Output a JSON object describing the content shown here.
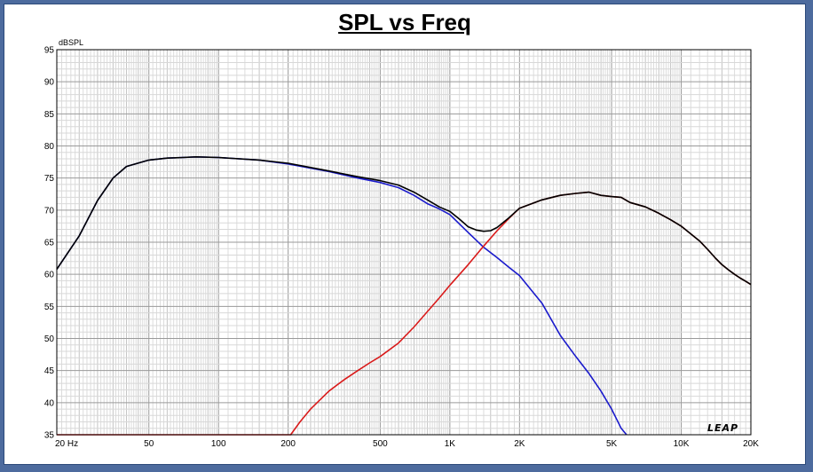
{
  "chart_data": {
    "type": "line",
    "title": "SPL vs Freq",
    "ylabel_unit": "dBSPL",
    "x_scale": "log",
    "xlim": [
      20,
      20000
    ],
    "ylim": [
      35,
      95
    ],
    "y_ticks": [
      35,
      40,
      45,
      50,
      55,
      60,
      65,
      70,
      75,
      80,
      85,
      90,
      95
    ],
    "x_ticks": [
      {
        "value": 20,
        "label": "20  Hz"
      },
      {
        "value": 50,
        "label": "50"
      },
      {
        "value": 100,
        "label": "100"
      },
      {
        "value": 200,
        "label": "200"
      },
      {
        "value": 500,
        "label": "500"
      },
      {
        "value": 1000,
        "label": "1K"
      },
      {
        "value": 2000,
        "label": "2K"
      },
      {
        "value": 5000,
        "label": "5K"
      },
      {
        "value": 10000,
        "label": "10K"
      },
      {
        "value": 20000,
        "label": "20K"
      }
    ],
    "grid": true,
    "logo_text": "LEAP",
    "series": [
      {
        "color": "#1a1acc",
        "points": [
          [
            20,
            60.8
          ],
          [
            25,
            66
          ],
          [
            30,
            71.5
          ],
          [
            35,
            75
          ],
          [
            40,
            76.8
          ],
          [
            50,
            77.8
          ],
          [
            60,
            78.1
          ],
          [
            70,
            78.2
          ],
          [
            80,
            78.3
          ],
          [
            100,
            78.2
          ],
          [
            150,
            77.8
          ],
          [
            200,
            77.2
          ],
          [
            300,
            76
          ],
          [
            400,
            75
          ],
          [
            500,
            74.3
          ],
          [
            600,
            73.5
          ],
          [
            700,
            72.3
          ],
          [
            800,
            71
          ],
          [
            900,
            70.2
          ],
          [
            1000,
            69.3
          ],
          [
            1200,
            66.5
          ],
          [
            1400,
            64.2
          ],
          [
            1600,
            62.6
          ],
          [
            1800,
            61.1
          ],
          [
            2000,
            59.8
          ],
          [
            2500,
            55.5
          ],
          [
            3000,
            50.5
          ],
          [
            3500,
            47.2
          ],
          [
            4000,
            44.5
          ],
          [
            4500,
            41.8
          ],
          [
            5000,
            39
          ],
          [
            5500,
            36
          ],
          [
            5800,
            35
          ]
        ]
      },
      {
        "color": "#d91a1a",
        "points": [
          [
            20,
            35
          ],
          [
            205,
            35
          ],
          [
            225,
            37
          ],
          [
            250,
            39
          ],
          [
            300,
            41.8
          ],
          [
            350,
            43.6
          ],
          [
            400,
            45
          ],
          [
            450,
            46.2
          ],
          [
            500,
            47.2
          ],
          [
            600,
            49.3
          ],
          [
            700,
            51.8
          ],
          [
            800,
            54.2
          ],
          [
            900,
            56.3
          ],
          [
            1000,
            58.3
          ],
          [
            1200,
            61.5
          ],
          [
            1400,
            64.4
          ],
          [
            1600,
            66.8
          ],
          [
            1800,
            68.7
          ],
          [
            2000,
            70.3
          ],
          [
            2500,
            71.6
          ],
          [
            3000,
            72.3
          ],
          [
            3500,
            72.6
          ],
          [
            4000,
            72.8
          ],
          [
            4500,
            72.3
          ],
          [
            5000,
            72.1
          ],
          [
            5500,
            72
          ],
          [
            6000,
            71.2
          ],
          [
            7000,
            70.5
          ],
          [
            8000,
            69.5
          ],
          [
            9000,
            68.5
          ],
          [
            10000,
            67.5
          ],
          [
            11000,
            66.3
          ],
          [
            12000,
            65.2
          ],
          [
            13000,
            63.9
          ],
          [
            14000,
            62.6
          ],
          [
            15000,
            61.5
          ],
          [
            16000,
            60.7
          ],
          [
            17000,
            60
          ],
          [
            18000,
            59.4
          ],
          [
            19000,
            58.9
          ],
          [
            20000,
            58.4
          ]
        ]
      },
      {
        "color": "#000000",
        "points": [
          [
            20,
            60.8
          ],
          [
            25,
            66
          ],
          [
            30,
            71.5
          ],
          [
            35,
            75
          ],
          [
            40,
            76.8
          ],
          [
            50,
            77.8
          ],
          [
            60,
            78.1
          ],
          [
            70,
            78.2
          ],
          [
            80,
            78.3
          ],
          [
            100,
            78.2
          ],
          [
            150,
            77.8
          ],
          [
            200,
            77.3
          ],
          [
            300,
            76.1
          ],
          [
            400,
            75.2
          ],
          [
            500,
            74.6
          ],
          [
            600,
            73.9
          ],
          [
            700,
            72.8
          ],
          [
            800,
            71.6
          ],
          [
            900,
            70.5
          ],
          [
            1000,
            69.8
          ],
          [
            1100,
            68.6
          ],
          [
            1200,
            67.4
          ],
          [
            1300,
            66.9
          ],
          [
            1400,
            66.7
          ],
          [
            1500,
            66.8
          ],
          [
            1600,
            67.3
          ],
          [
            1800,
            68.8
          ],
          [
            2000,
            70.3
          ],
          [
            2500,
            71.6
          ],
          [
            3000,
            72.3
          ],
          [
            3500,
            72.6
          ],
          [
            4000,
            72.8
          ],
          [
            4500,
            72.3
          ],
          [
            5000,
            72.1
          ],
          [
            5500,
            72
          ],
          [
            6000,
            71.2
          ],
          [
            7000,
            70.5
          ],
          [
            8000,
            69.5
          ],
          [
            9000,
            68.5
          ],
          [
            10000,
            67.5
          ],
          [
            11000,
            66.3
          ],
          [
            12000,
            65.2
          ],
          [
            13000,
            63.9
          ],
          [
            14000,
            62.6
          ],
          [
            15000,
            61.5
          ],
          [
            16000,
            60.7
          ],
          [
            17000,
            60
          ],
          [
            18000,
            59.4
          ],
          [
            19000,
            58.9
          ],
          [
            20000,
            58.4
          ]
        ]
      }
    ]
  }
}
